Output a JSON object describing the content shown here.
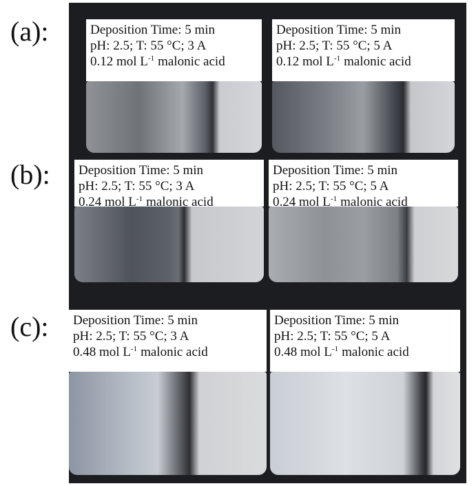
{
  "panels": [
    {
      "label": "(a):",
      "samples": [
        {
          "time": "Deposition Time: 5 min",
          "conditions": "pH: 2.5; T: 55 °C; 3 A",
          "concentration": {
            "amount": "0.12 mol L",
            "exponent": "-1",
            "acid": "malonic acid"
          }
        },
        {
          "time": "Deposition Time: 5 min",
          "conditions": "pH: 2.5; T: 55 °C; 5 A",
          "concentration": {
            "amount": "0.12 mol L",
            "exponent": "-1",
            "acid": "malonic acid"
          }
        }
      ]
    },
    {
      "label": "(b):",
      "samples": [
        {
          "time": "Deposition Time: 5 min",
          "conditions": "pH: 2.5; T: 55 °C; 3 A",
          "concentration": {
            "amount": "0.24 mol L",
            "exponent": "-1",
            "acid": "malonic acid"
          }
        },
        {
          "time": "Deposition Time: 5 min",
          "conditions": "pH: 2.5; T: 55 °C; 5 A",
          "concentration": {
            "amount": "0.24 mol L",
            "exponent": "-1",
            "acid": "malonic acid"
          }
        }
      ]
    },
    {
      "label": "(c):",
      "samples": [
        {
          "time": "Deposition Time: 5 min",
          "conditions": "pH: 2.5; T: 55 °C; 3 A",
          "concentration": {
            "amount": "0.48 mol L",
            "exponent": "-1",
            "acid": "malonic acid"
          }
        },
        {
          "time": "Deposition Time: 5 min",
          "conditions": "pH: 2.5; T: 55 °C; 5 A",
          "concentration": {
            "amount": "0.48 mol L",
            "exponent": "-1",
            "acid": "malonic acid"
          }
        }
      ]
    }
  ]
}
